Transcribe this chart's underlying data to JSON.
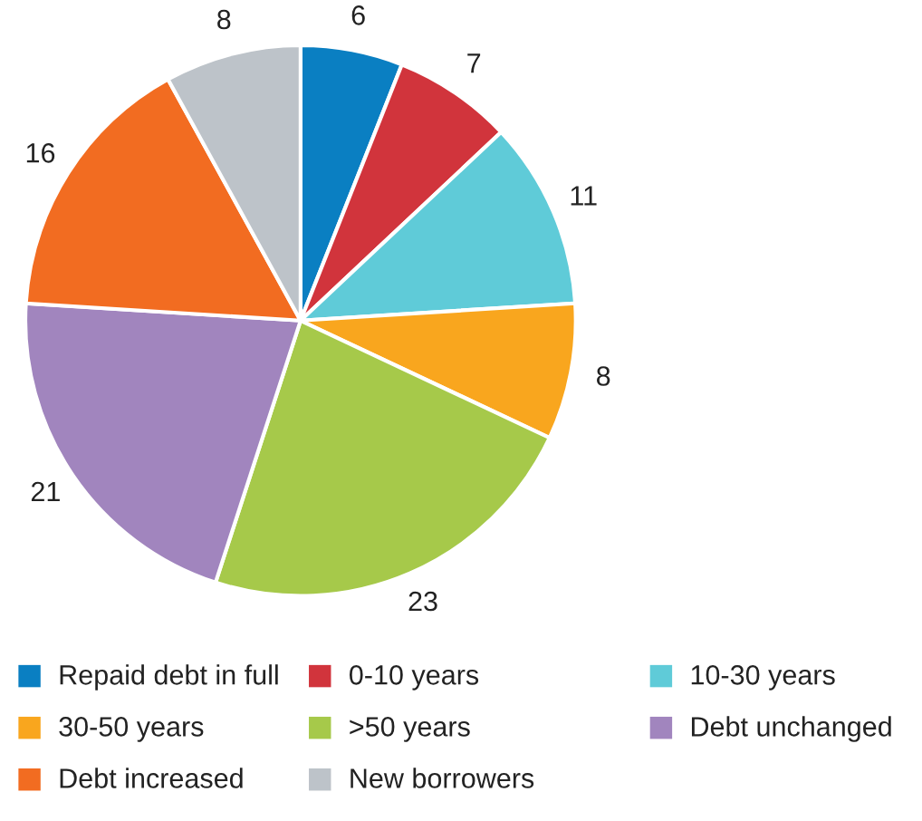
{
  "chart_data": {
    "type": "pie",
    "categories": [
      "Repaid debt in full",
      "0-10 years",
      "10-30 years",
      "30-50 years",
      ">50 years",
      "Debt unchanged",
      "Debt increased",
      "New borrowers"
    ],
    "values": [
      6,
      7,
      11,
      8,
      23,
      21,
      16,
      8
    ],
    "colors": [
      "#0a7fc2",
      "#d1343c",
      "#5fcbd8",
      "#f9a61e",
      "#a6c94a",
      "#a185be",
      "#f26c21",
      "#bdc3c9"
    ],
    "data_labels": true,
    "legend": "bottom"
  }
}
